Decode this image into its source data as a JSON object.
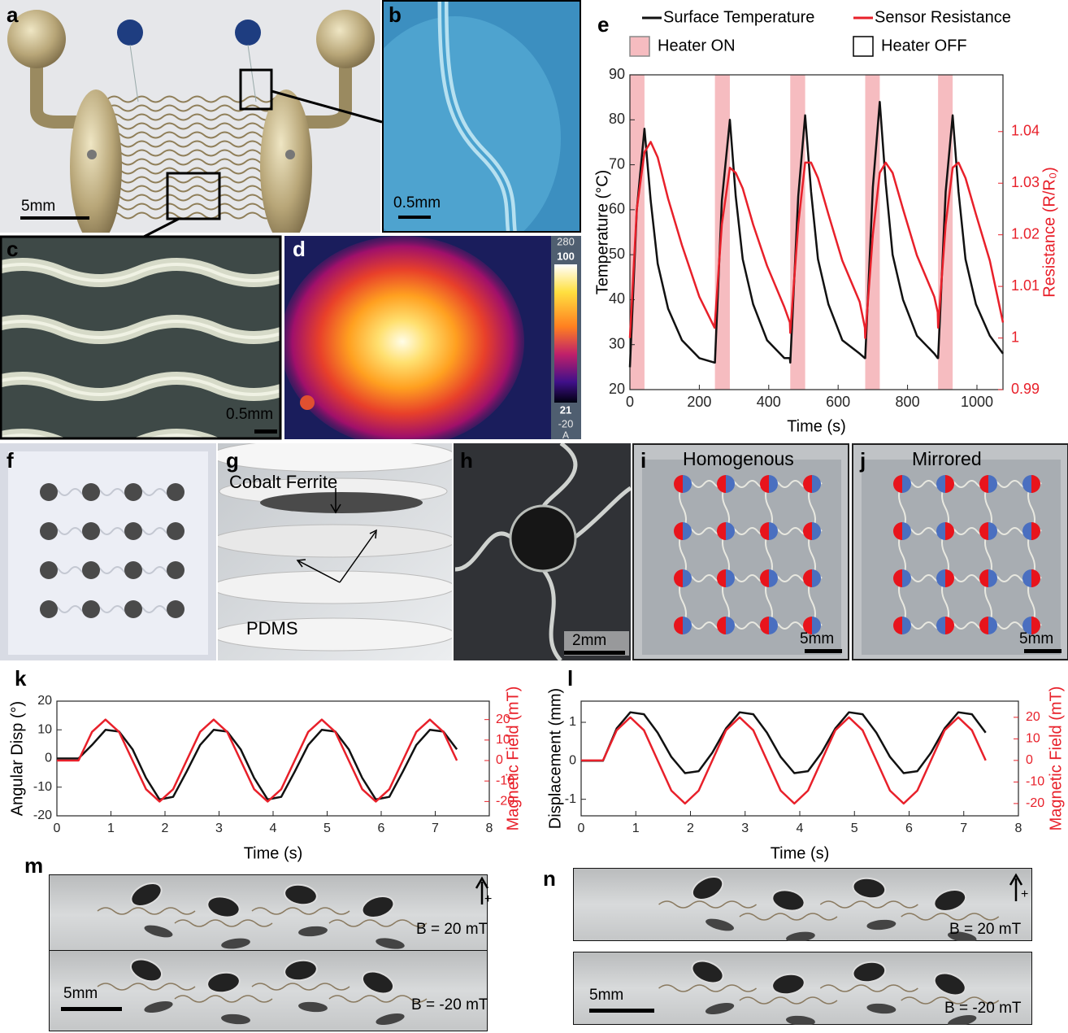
{
  "panels": {
    "a": {
      "label": "a",
      "scale": "5mm"
    },
    "b": {
      "label": "b",
      "scale": "0.5mm"
    },
    "c": {
      "label": "c",
      "scale": "0.5mm"
    },
    "d": {
      "label": "d",
      "colorbar": [
        "280",
        "100",
        "21",
        "-20",
        "A"
      ]
    },
    "f": {
      "label": "f"
    },
    "g": {
      "label": "g",
      "annotations": [
        "Cobalt Ferrite",
        "PDMS"
      ]
    },
    "h": {
      "label": "h",
      "scale": "2mm"
    },
    "i": {
      "label": "i",
      "title": "Homogenous",
      "scale": "5mm"
    },
    "j": {
      "label": "j",
      "title": "Mirrored",
      "scale": "5mm"
    },
    "m": {
      "label": "m",
      "scale": "5mm",
      "fields": [
        "B = 20 mT",
        "B = -20 mT"
      ],
      "sign": "+"
    },
    "n": {
      "label": "n",
      "scale": "5mm",
      "fields": [
        "B = 20 mT",
        "B = -20 mT"
      ],
      "sign": "+"
    }
  },
  "chart_data": [
    {
      "type": "line",
      "label": "e",
      "x_label": "Time (s)",
      "y_label": "Temperature (°C)",
      "y2_label": "Resistance (R/R₀)",
      "xlim": [
        0,
        1075
      ],
      "xticks": [
        0,
        200,
        400,
        600,
        800,
        1000
      ],
      "ylim": [
        20,
        90
      ],
      "yticks": [
        20,
        30,
        40,
        50,
        60,
        70,
        80,
        90
      ],
      "y2lim": [
        0.99,
        1.051
      ],
      "y2ticks": [
        0.99,
        1,
        1.01,
        1.02,
        1.03,
        1.04
      ],
      "bands": {
        "name": "Heater ON",
        "off_name": "Heater OFF",
        "color": "#f6bcc0",
        "spans": [
          [
            0,
            42
          ],
          [
            245,
            288
          ],
          [
            462,
            505
          ],
          [
            678,
            720
          ],
          [
            888,
            930
          ]
        ]
      },
      "x": [
        0,
        20,
        42,
        60,
        80,
        110,
        150,
        200,
        244,
        245,
        265,
        288,
        305,
        325,
        355,
        395,
        445,
        461,
        462,
        485,
        505,
        522,
        542,
        572,
        612,
        662,
        677,
        678,
        700,
        720,
        737,
        757,
        787,
        827,
        877,
        887,
        888,
        910,
        930,
        947,
        967,
        997,
        1037,
        1075
      ],
      "series": [
        {
          "name": "Surface Temperature",
          "color": "#111111",
          "values": [
            25,
            60,
            78,
            62,
            48,
            38,
            31,
            27,
            26,
            26,
            62,
            80,
            63,
            49,
            39,
            31,
            27,
            27,
            26,
            63,
            81,
            64,
            49,
            39,
            31,
            28,
            27,
            27,
            65,
            84,
            66,
            50,
            40,
            32,
            28,
            27,
            27,
            64,
            81,
            64,
            49,
            39,
            32,
            28
          ]
        },
        {
          "name": "Sensor Resistance",
          "color": "#e8202a",
          "axis": "y2",
          "values": [
            1.0,
            1.025,
            1.036,
            1.038,
            1.035,
            1.027,
            1.018,
            1.008,
            1.002,
            1.003,
            1.022,
            1.033,
            1.032,
            1.029,
            1.022,
            1.014,
            1.006,
            1.003,
            1.001,
            1.022,
            1.034,
            1.034,
            1.031,
            1.024,
            1.015,
            1.007,
            1.002,
            1.0,
            1.02,
            1.032,
            1.034,
            1.032,
            1.025,
            1.016,
            1.008,
            1.005,
            1.002,
            1.022,
            1.033,
            1.034,
            1.031,
            1.024,
            1.015,
            1.003
          ]
        }
      ]
    },
    {
      "type": "line",
      "label": "k",
      "x_label": "Time (s)",
      "y_label": "Angular Disp (°)",
      "y2_label": "Magnetic Field (mT)",
      "xlim": [
        0,
        8
      ],
      "xticks": [
        0,
        1,
        2,
        3,
        4,
        5,
        6,
        7,
        8
      ],
      "ylim": [
        -20,
        20
      ],
      "yticks": [
        -20,
        -10,
        0,
        10,
        20
      ],
      "y2lim": [
        -27,
        29
      ],
      "y2ticks": [
        -20,
        -10,
        0,
        10,
        20
      ],
      "x": [
        0,
        0.4,
        0.65,
        0.9,
        1.15,
        1.4,
        1.65,
        1.9,
        2.15,
        2.4,
        2.65,
        2.9,
        3.15,
        3.4,
        3.65,
        3.9,
        4.15,
        4.4,
        4.65,
        4.9,
        5.15,
        5.4,
        5.65,
        5.9,
        6.15,
        6.4,
        6.65,
        6.9,
        7.15,
        7.4
      ],
      "series": [
        {
          "color": "#111111",
          "values": [
            0,
            0,
            4.7,
            10,
            9.4,
            3.2,
            -6.8,
            -14.3,
            -13.4,
            -4.6,
            4.7,
            10,
            9.4,
            3.2,
            -6.8,
            -14.3,
            -13.4,
            -4.6,
            4.7,
            10,
            9.4,
            3.2,
            -6.8,
            -14.3,
            -13.4,
            -4.6,
            4.7,
            10,
            9.4,
            3.2
          ]
        },
        {
          "color": "#e8202a",
          "axis": "y2",
          "values": [
            0,
            0,
            14,
            20,
            14,
            0,
            -14,
            -20,
            -14,
            0,
            14,
            20,
            14,
            0,
            -14,
            -20,
            -14,
            0,
            14,
            20,
            14,
            0,
            -14,
            -20,
            -14,
            0,
            14,
            20,
            14,
            0
          ]
        }
      ]
    },
    {
      "type": "line",
      "label": "l",
      "x_label": "Time (s)",
      "y_label": "Displacement (mm)",
      "y2_label": "Magnetic Field (mT)",
      "xlim": [
        0,
        8
      ],
      "xticks": [
        0,
        1,
        2,
        3,
        4,
        5,
        6,
        7,
        8
      ],
      "ylim": [
        -1.43,
        1.55
      ],
      "yticks": [
        -1,
        0,
        1
      ],
      "y2lim": [
        -25.7,
        27.5
      ],
      "y2ticks": [
        -20,
        -10,
        0,
        10,
        20
      ],
      "x": [
        0,
        0.4,
        0.65,
        0.9,
        1.15,
        1.4,
        1.65,
        1.9,
        2.15,
        2.4,
        2.65,
        2.9,
        3.15,
        3.4,
        3.65,
        3.9,
        4.15,
        4.4,
        4.65,
        4.9,
        5.15,
        5.4,
        5.65,
        5.9,
        6.15,
        6.4,
        6.65,
        6.9,
        7.15,
        7.4
      ],
      "series": [
        {
          "color": "#111111",
          "values": [
            0,
            0,
            0.84,
            1.26,
            1.21,
            0.73,
            0.1,
            -0.32,
            -0.27,
            0.21,
            0.84,
            1.26,
            1.21,
            0.73,
            0.1,
            -0.32,
            -0.27,
            0.21,
            0.84,
            1.26,
            1.21,
            0.73,
            0.1,
            -0.32,
            -0.27,
            0.21,
            0.84,
            1.26,
            1.21,
            0.73
          ]
        },
        {
          "color": "#e8202a",
          "axis": "y2",
          "values": [
            0,
            0,
            14,
            20,
            14,
            0,
            -14,
            -20,
            -14,
            0,
            14,
            20,
            14,
            0,
            -14,
            -20,
            -14,
            0,
            14,
            20,
            14,
            0,
            -14,
            -20,
            -14,
            0,
            14,
            20,
            14,
            0
          ]
        }
      ]
    }
  ]
}
